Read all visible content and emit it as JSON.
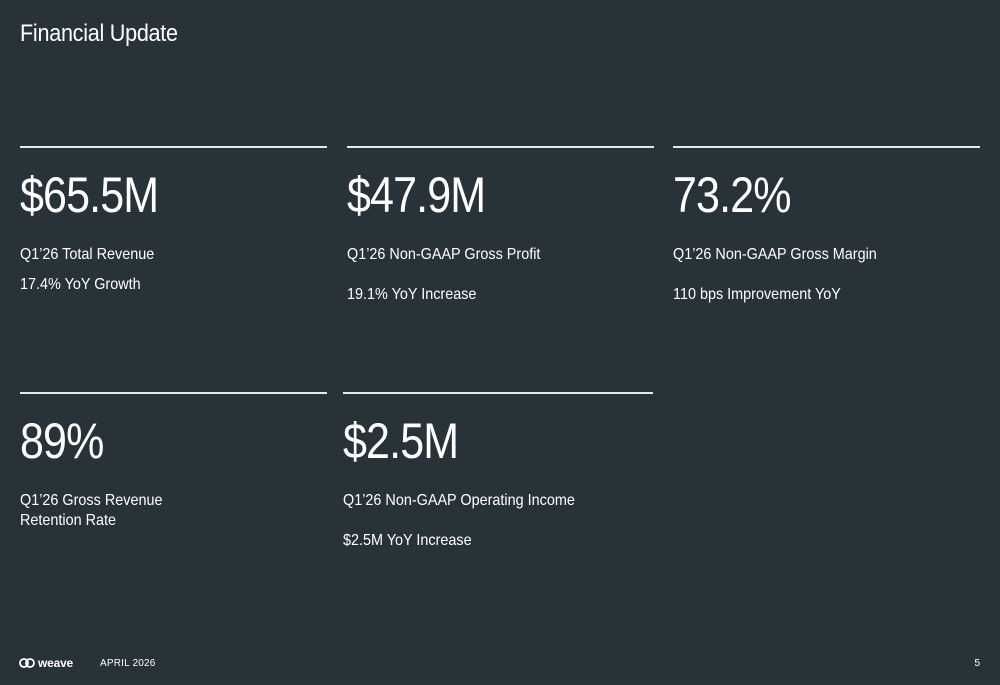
{
  "header": {
    "title": "Financial Update"
  },
  "metrics": [
    {
      "value": "$65.5M",
      "label": "Q1’26 Total Revenue",
      "sub": "17.4% YoY Growth"
    },
    {
      "value": "$47.9M",
      "label": "Q1’26 Non-GAAP Gross Profit",
      "sub": "19.1% YoY Increase"
    },
    {
      "value": "73.2%",
      "label": "Q1’26 Non-GAAP Gross Margin",
      "sub": "110 bps Improvement YoY"
    },
    {
      "value": "89%",
      "label": "Q1’26 Gross Revenue Retention Rate",
      "sub": ""
    },
    {
      "value": "$2.5M",
      "label": "Q1’26 Non-GAAP Operating Income",
      "sub": "$2.5M YoY Increase"
    }
  ],
  "footer": {
    "logo_text": "weave",
    "logo_icon": "weave-logo-icon",
    "date": "APRIL 2026",
    "page_number": "5"
  },
  "colors": {
    "background": "#283339",
    "text": "#ffffff",
    "rule": "#e6e9eb"
  }
}
